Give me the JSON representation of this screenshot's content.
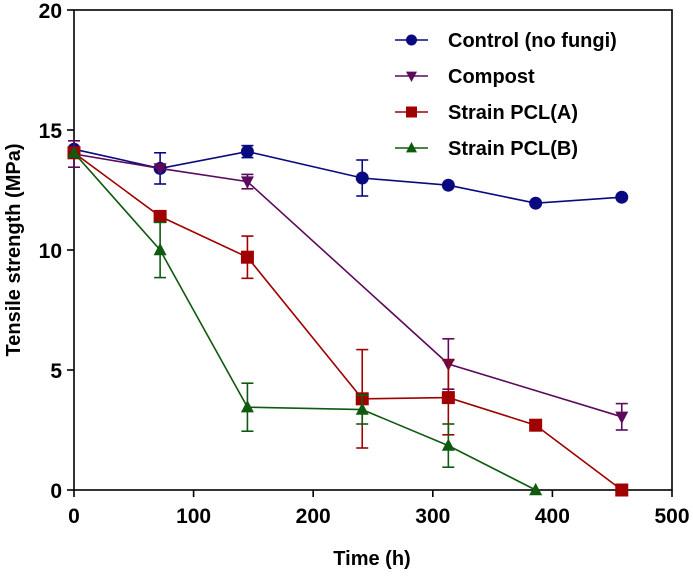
{
  "chart_data": {
    "type": "line",
    "title": "",
    "xlabel": "Time (h)",
    "ylabel": "Tensile strength (MPa)",
    "xlim": [
      0,
      500
    ],
    "ylim": [
      0,
      20
    ],
    "xticks": [
      0,
      100,
      200,
      300,
      400,
      500
    ],
    "yticks": [
      0,
      5,
      10,
      15,
      20
    ],
    "grid": false,
    "legend_position": "top-right",
    "series": [
      {
        "name": "Control (no fungi)",
        "color": "#0a0a80",
        "marker": "circle",
        "x": [
          0,
          72,
          145,
          241,
          313,
          386,
          458
        ],
        "y": [
          14.2,
          13.4,
          14.1,
          13.0,
          12.7,
          11.95,
          12.2
        ],
        "err": [
          0.15,
          0.65,
          0.25,
          0.75,
          0.1,
          0.1,
          0.1
        ]
      },
      {
        "name": "Compost",
        "color": "#5c0a5c",
        "marker": "triangle-down",
        "x": [
          0,
          72,
          145,
          313,
          458
        ],
        "y": [
          14.0,
          13.4,
          12.85,
          5.25,
          3.05
        ],
        "err": [
          0.55,
          0.1,
          0.3,
          1.05,
          0.55
        ]
      },
      {
        "name": "Strain PCL(A)",
        "color": "#a00000",
        "marker": "square",
        "x": [
          0,
          72,
          145,
          241,
          313,
          386,
          458
        ],
        "y": [
          14.05,
          11.4,
          9.7,
          3.8,
          3.85,
          2.7,
          0.0
        ],
        "err": [
          0.2,
          0.1,
          0.88,
          2.05,
          1.55,
          0.1,
          0.0
        ]
      },
      {
        "name": "Strain PCL(B)",
        "color": "#0f5a0f",
        "marker": "triangle-up",
        "x": [
          0,
          72,
          145,
          241,
          313,
          386
        ],
        "y": [
          14.05,
          10.0,
          3.45,
          3.35,
          1.85,
          0.0
        ],
        "err": [
          0.1,
          1.15,
          1.0,
          0.6,
          0.9,
          0.0
        ]
      }
    ]
  }
}
